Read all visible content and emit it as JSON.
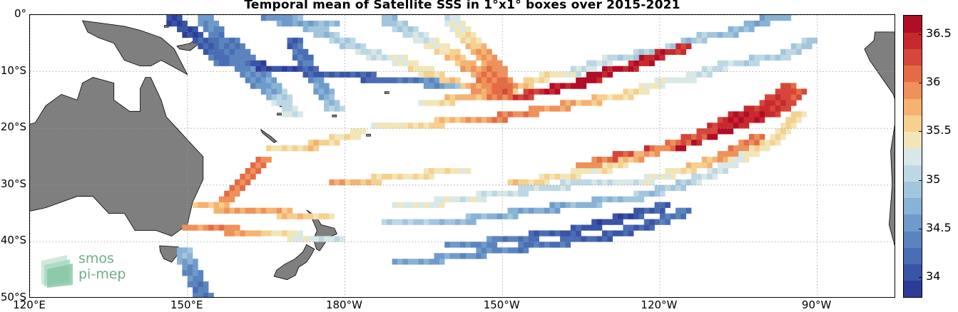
{
  "title": "Temporal mean of Satellite SSS in 1°x1° boxes over 2015-2021",
  "map": {
    "projection": "equirectangular",
    "lon_range": [
      120,
      -75
    ],
    "lat_range": [
      0,
      -50
    ],
    "grid_lines": "dotted",
    "land_color": "#7f7f7f",
    "ocean_color": "#ffffff",
    "lat_labels": [
      "0°",
      "10°S",
      "20°S",
      "30°S",
      "40°S",
      "50°S"
    ],
    "lon_labels": [
      "120°E",
      "150°E",
      "180°W",
      "150°W",
      "120°W",
      "90°W"
    ],
    "lat_ticks": [
      0,
      -10,
      -20,
      -30,
      -40,
      -50
    ],
    "lon_ticks": [
      120,
      150,
      180,
      210,
      240,
      270
    ]
  },
  "colorbar": {
    "variable": "SSS",
    "range": [
      33.8,
      36.7
    ],
    "colors": [
      "#2c3d99",
      "#3a55a6",
      "#4a6db4",
      "#5b84bf",
      "#6f9bcc",
      "#88b2d6",
      "#a2c6de",
      "#bdd8e5",
      "#d8e8e7",
      "#f2e6b8",
      "#f6d08e",
      "#f5b273",
      "#ee915a",
      "#e46b45",
      "#d6463a",
      "#c62a2f",
      "#b10d26"
    ],
    "tick_labels": [
      "36.5",
      "36",
      "35.5",
      "35",
      "34.5",
      "34"
    ],
    "tick_values": [
      36.5,
      36.0,
      35.5,
      35.0,
      34.5,
      34.0
    ]
  },
  "chart_data": {
    "type": "heatmap",
    "title": "Temporal mean of Satellite SSS in 1°x1° boxes over 2015-2021",
    "xlabel": "",
    "ylabel": "",
    "x_ticks": [
      "120°E",
      "150°E",
      "180°W",
      "150°W",
      "120°W",
      "90°W"
    ],
    "y_ticks": [
      "0°",
      "10°S",
      "20°S",
      "30°S",
      "40°S",
      "50°S"
    ],
    "legend": "colorbar right",
    "value_range": [
      33.8,
      36.7
    ],
    "tracks": [
      {
        "lon": [
          147,
          150,
          153,
          155,
          157
        ],
        "lat": [
          -1,
          -3,
          -5,
          -7,
          -9
        ],
        "sss": [
          34.0,
          34.0,
          34.1,
          34.2,
          34.3
        ]
      },
      {
        "lon": [
          153,
          155,
          157,
          160,
          163,
          166,
          168
        ],
        "lat": [
          -1,
          -3,
          -6,
          -9,
          -12,
          -14,
          -16
        ],
        "sss": [
          34.6,
          34.4,
          34.3,
          34.4,
          34.5,
          34.8,
          35.2
        ]
      },
      {
        "lon": [
          165,
          168,
          171,
          174,
          177
        ],
        "lat": [
          -1,
          -1,
          -2,
          -2,
          -2
        ],
        "sss": [
          34.5,
          34.6,
          34.7,
          34.8,
          34.8
        ]
      },
      {
        "lon": [
          163,
          168,
          173,
          178,
          184,
          190,
          196,
          200
        ],
        "lat": [
          -9,
          -10,
          -10,
          -11,
          -11,
          -12,
          -12,
          -13
        ],
        "sss": [
          34.0,
          34.0,
          34.1,
          34.1,
          34.2,
          34.3,
          34.5,
          34.8
        ]
      },
      {
        "lon": [
          170,
          175,
          180,
          185,
          190,
          195,
          200,
          205,
          210
        ],
        "lat": [
          -1,
          -3,
          -5,
          -7,
          -8,
          -10,
          -12,
          -13,
          -15
        ],
        "sss": [
          34.8,
          34.9,
          35.0,
          35.2,
          35.3,
          35.5,
          35.7,
          35.9,
          36.1
        ]
      },
      {
        "lon": [
          188,
          192,
          196,
          200,
          205,
          210
        ],
        "lat": [
          -1,
          -3,
          -5,
          -7,
          -10,
          -14
        ],
        "sss": [
          34.9,
          35.1,
          35.3,
          35.6,
          35.9,
          36.2
        ]
      },
      {
        "lon": [
          200,
          203,
          206,
          209,
          211
        ],
        "lat": [
          -1,
          -4,
          -7,
          -10,
          -13
        ],
        "sss": [
          35.2,
          35.5,
          35.8,
          36.0,
          36.1
        ]
      },
      {
        "lon": [
          210,
          215,
          220,
          225,
          230,
          235,
          240,
          244
        ],
        "lat": [
          -15,
          -14,
          -13,
          -12,
          -10,
          -9,
          -7,
          -6
        ],
        "sss": [
          36.3,
          36.4,
          36.5,
          36.6,
          36.6,
          36.5,
          36.5,
          36.4
        ]
      },
      {
        "lon": [
          195,
          200,
          206,
          212,
          218,
          224,
          230,
          236,
          242,
          248,
          254,
          260,
          264
        ],
        "lat": [
          -16,
          -15,
          -14,
          -13,
          -11,
          -10,
          -8,
          -7,
          -6,
          -4,
          -3,
          -1,
          0
        ],
        "sss": [
          35.4,
          35.7,
          35.8,
          35.6,
          35.5,
          35.2,
          35.1,
          35.0,
          34.9,
          34.9,
          34.8,
          34.7,
          34.8
        ]
      },
      {
        "lon": [
          186,
          192,
          198,
          204,
          210,
          216,
          222,
          228,
          234,
          240,
          246,
          252,
          258,
          264,
          268
        ],
        "lat": [
          -20,
          -20,
          -19,
          -19,
          -18,
          -17,
          -16,
          -15,
          -14,
          -12,
          -11,
          -9,
          -8,
          -7,
          -5
        ],
        "sss": [
          35.4,
          35.5,
          35.6,
          35.9,
          36.0,
          35.9,
          35.8,
          35.6,
          35.5,
          35.3,
          35.2,
          35.1,
          35.0,
          35.0,
          34.9
        ]
      },
      {
        "lon": [
          212,
          218,
          224,
          230,
          236,
          242,
          248,
          254,
          260,
          264
        ],
        "lat": [
          -30,
          -29,
          -28,
          -27,
          -25,
          -23,
          -21,
          -18,
          -16,
          -13
        ],
        "sss": [
          35.6,
          35.5,
          35.4,
          35.5,
          35.8,
          36.1,
          36.3,
          36.5,
          36.4,
          36.2
        ]
      },
      {
        "lon": [
          225,
          232,
          238,
          244,
          250,
          256,
          262,
          266
        ],
        "lat": [
          -27,
          -25,
          -24,
          -23,
          -21,
          -19,
          -17,
          -14
        ],
        "sss": [
          35.9,
          36.2,
          36.5,
          36.6,
          36.6,
          36.5,
          36.4,
          36.2
        ]
      },
      {
        "lon": [
          190,
          198,
          206,
          214,
          222,
          230,
          238,
          246,
          252,
          258
        ],
        "lat": [
          -34,
          -33,
          -32,
          -31,
          -30,
          -30,
          -29,
          -27,
          -25,
          -22
        ],
        "sss": [
          35.3,
          35.3,
          35.2,
          35.1,
          35.1,
          35.2,
          35.3,
          35.6,
          35.9,
          36.1
        ]
      },
      {
        "lon": [
          188,
          196,
          204,
          212,
          220,
          228,
          236,
          244,
          250,
          256,
          262,
          266
        ],
        "lat": [
          -37,
          -37,
          -36,
          -35,
          -34,
          -33,
          -32,
          -30,
          -28,
          -25,
          -22,
          -18
        ],
        "sss": [
          35.0,
          34.9,
          34.8,
          34.7,
          34.7,
          34.8,
          34.9,
          35.0,
          35.2,
          35.4,
          35.5,
          35.6
        ]
      },
      {
        "lon": [
          190,
          198,
          206,
          214,
          222,
          230,
          238,
          244
        ],
        "lat": [
          -44,
          -43,
          -42,
          -41,
          -40,
          -39,
          -37,
          -35
        ],
        "sss": [
          34.7,
          34.6,
          34.5,
          34.3,
          34.2,
          34.1,
          34.2,
          34.4
        ]
      },
      {
        "lon": [
          200,
          208,
          216,
          224,
          232,
          240
        ],
        "lat": [
          -41,
          -40,
          -39,
          -38,
          -36,
          -34
        ],
        "sss": [
          34.5,
          34.4,
          34.2,
          34.1,
          34.0,
          34.2
        ]
      },
      {
        "lon": [
          152,
          156,
          160,
          164,
          168,
          172,
          176
        ],
        "lat": [
          -34,
          -34,
          -35,
          -35,
          -35,
          -36,
          -36
        ],
        "sss": [
          35.7,
          35.8,
          35.9,
          35.8,
          35.7,
          35.6,
          35.5
        ]
      },
      {
        "lon": [
          150,
          154,
          158,
          162,
          166,
          170,
          174,
          178
        ],
        "lat": [
          -38,
          -38,
          -38,
          -39,
          -39,
          -39,
          -40,
          -40
        ],
        "sss": [
          35.9,
          36.0,
          35.9,
          35.7,
          35.5,
          35.3,
          35.2,
          35.2
        ]
      },
      {
        "lon": [
          156,
          158,
          160,
          162,
          164
        ],
        "lat": [
          -34,
          -32,
          -30,
          -28,
          -26
        ],
        "sss": [
          35.9,
          36.0,
          36.1,
          36.1,
          36.0
        ]
      },
      {
        "lon": [
          166,
          170,
          174,
          178,
          182
        ],
        "lat": [
          -24,
          -24,
          -23,
          -22,
          -21
        ],
        "sss": [
          35.5,
          35.6,
          35.6,
          35.5,
          35.4
        ]
      },
      {
        "lon": [
          178,
          182,
          186,
          190,
          196,
          202
        ],
        "lat": [
          -30,
          -30,
          -29,
          -29,
          -28,
          -28
        ],
        "sss": [
          35.8,
          35.7,
          35.6,
          35.5,
          35.5,
          35.4
        ]
      },
      {
        "lon": [
          149,
          150,
          151,
          152,
          153
        ],
        "lat": [
          -42,
          -44,
          -46,
          -48,
          -50
        ],
        "sss": [
          34.8,
          34.6,
          34.4,
          34.4,
          34.3
        ]
      },
      {
        "lon": [
          158,
          160,
          162,
          164,
          166,
          168,
          170
        ],
        "lat": [
          -5,
          -7,
          -9,
          -11,
          -13,
          -15,
          -18
        ],
        "sss": [
          34.3,
          34.4,
          34.5,
          34.6,
          34.8,
          35.0,
          35.2
        ]
      },
      {
        "lon": [
          170,
          172,
          174,
          176,
          178
        ],
        "lat": [
          -5,
          -8,
          -11,
          -14,
          -17
        ],
        "sss": [
          34.2,
          34.3,
          34.5,
          34.7,
          35.0
        ]
      }
    ]
  },
  "logo": {
    "line1": "smos",
    "line2": "pi-mep"
  }
}
